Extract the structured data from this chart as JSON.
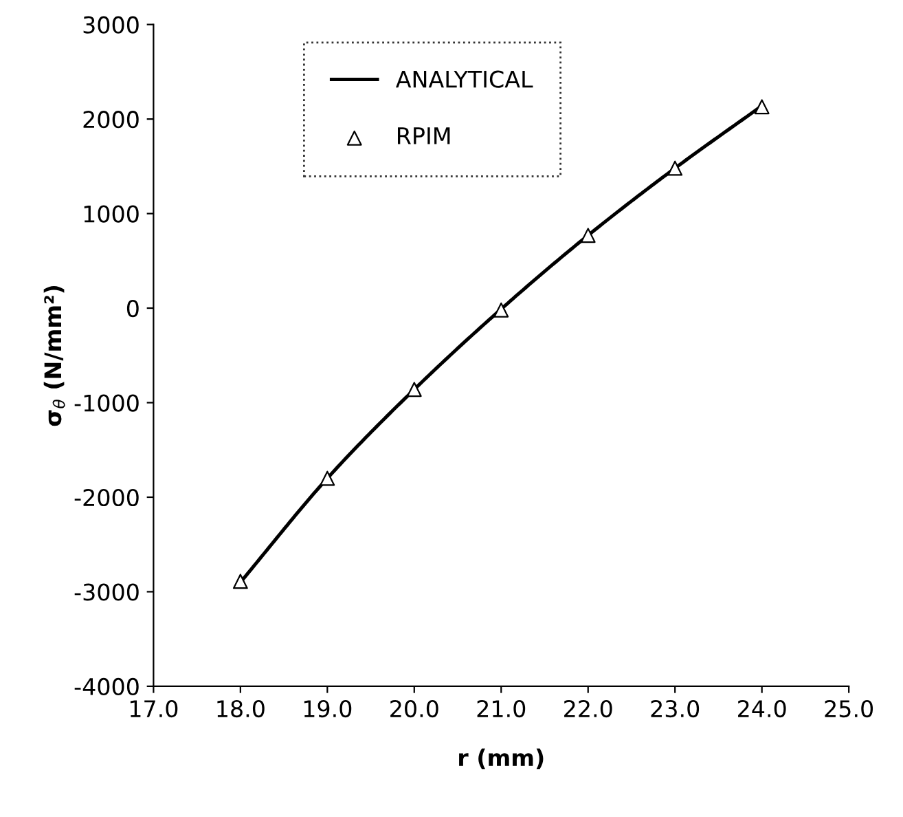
{
  "chart_data": {
    "type": "line",
    "xlabel": "r (mm)",
    "ylabel": "σ$_{θ}$ (N/mm²)",
    "xlim": [
      17.0,
      25.0
    ],
    "xticks": [
      {
        "value": 17,
        "label": "17.0"
      },
      {
        "value": 18,
        "label": "18.0"
      },
      {
        "value": 19,
        "label": "19.0"
      },
      {
        "value": 20,
        "label": "20.0"
      },
      {
        "value": 21,
        "label": "21.0"
      },
      {
        "value": 22,
        "label": "22.0"
      },
      {
        "value": 23,
        "label": "23.0"
      },
      {
        "value": 24,
        "label": "24.0"
      },
      {
        "value": 25,
        "label": "25.0"
      }
    ],
    "ylim": [
      -4000,
      3000
    ],
    "yticks": [
      -4000,
      -3000,
      -2000,
      -1000,
      0,
      1000,
      2000,
      3000
    ],
    "grid": false,
    "legend": "top left",
    "series": [
      {
        "name": "ANALYTICAL",
        "color": "#000000",
        "line_style": "solid",
        "marker": "none",
        "x": [
          18,
          19,
          20,
          21,
          22,
          23,
          24
        ],
        "values": [
          -2900,
          -1800,
          -860,
          -10,
          770,
          1480,
          2140
        ]
      },
      {
        "name": "RPIM",
        "type": "scatter",
        "color": "#000000",
        "marker": "triangle",
        "x": [
          18,
          19,
          20,
          21,
          22,
          23,
          24
        ],
        "values": [
          -2890,
          -1800,
          -860,
          -20,
          770,
          1480,
          2130
        ]
      }
    ]
  }
}
